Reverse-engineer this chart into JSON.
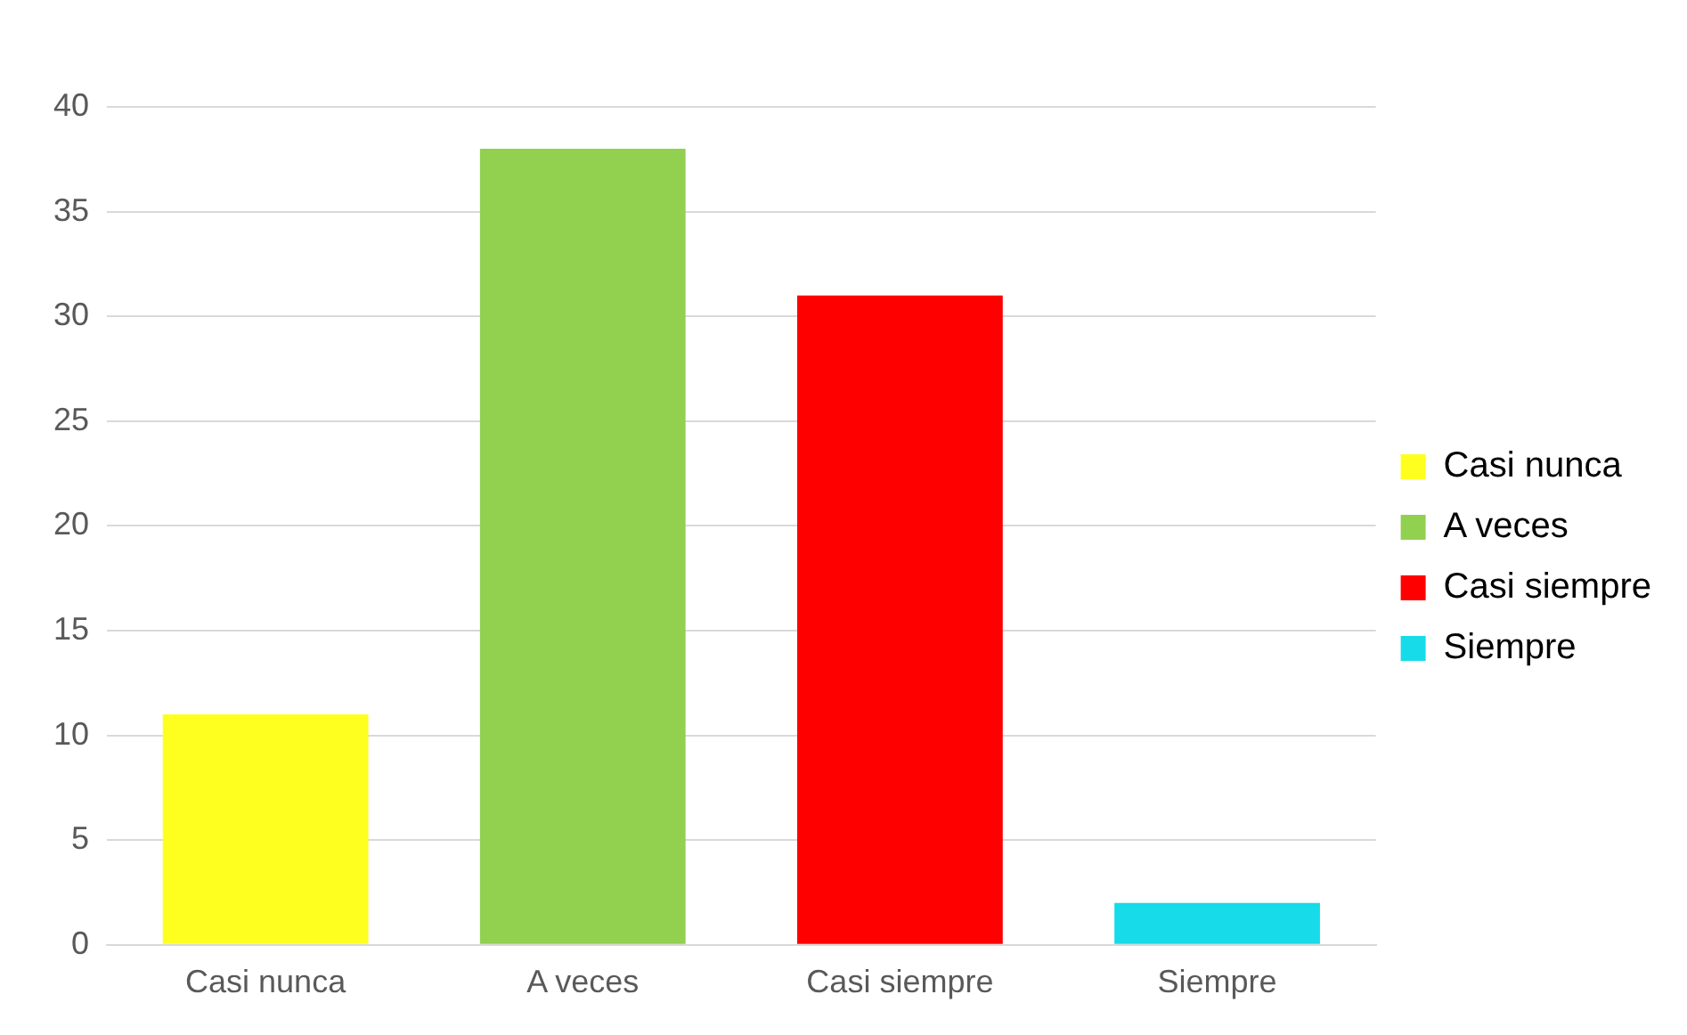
{
  "chart_data": {
    "type": "bar",
    "categories": [
      "Casi nunca",
      "A veces",
      "Casi siempre",
      "Siempre"
    ],
    "series": [
      {
        "name": "Casi nunca",
        "color": "#ffff1f",
        "values": [
          11,
          null,
          null,
          null
        ]
      },
      {
        "name": "A veces",
        "color": "#92d050",
        "values": [
          null,
          38,
          null,
          null
        ]
      },
      {
        "name": "Casi siempre",
        "color": "#ff0000",
        "values": [
          null,
          null,
          31,
          null
        ]
      },
      {
        "name": "Siempre",
        "color": "#17dbe8",
        "values": [
          null,
          null,
          null,
          2
        ]
      }
    ],
    "ylim": [
      0,
      40
    ],
    "yticks": [
      0,
      5,
      10,
      15,
      20,
      25,
      30,
      35,
      40
    ],
    "grid": "y",
    "legend": "right"
  }
}
